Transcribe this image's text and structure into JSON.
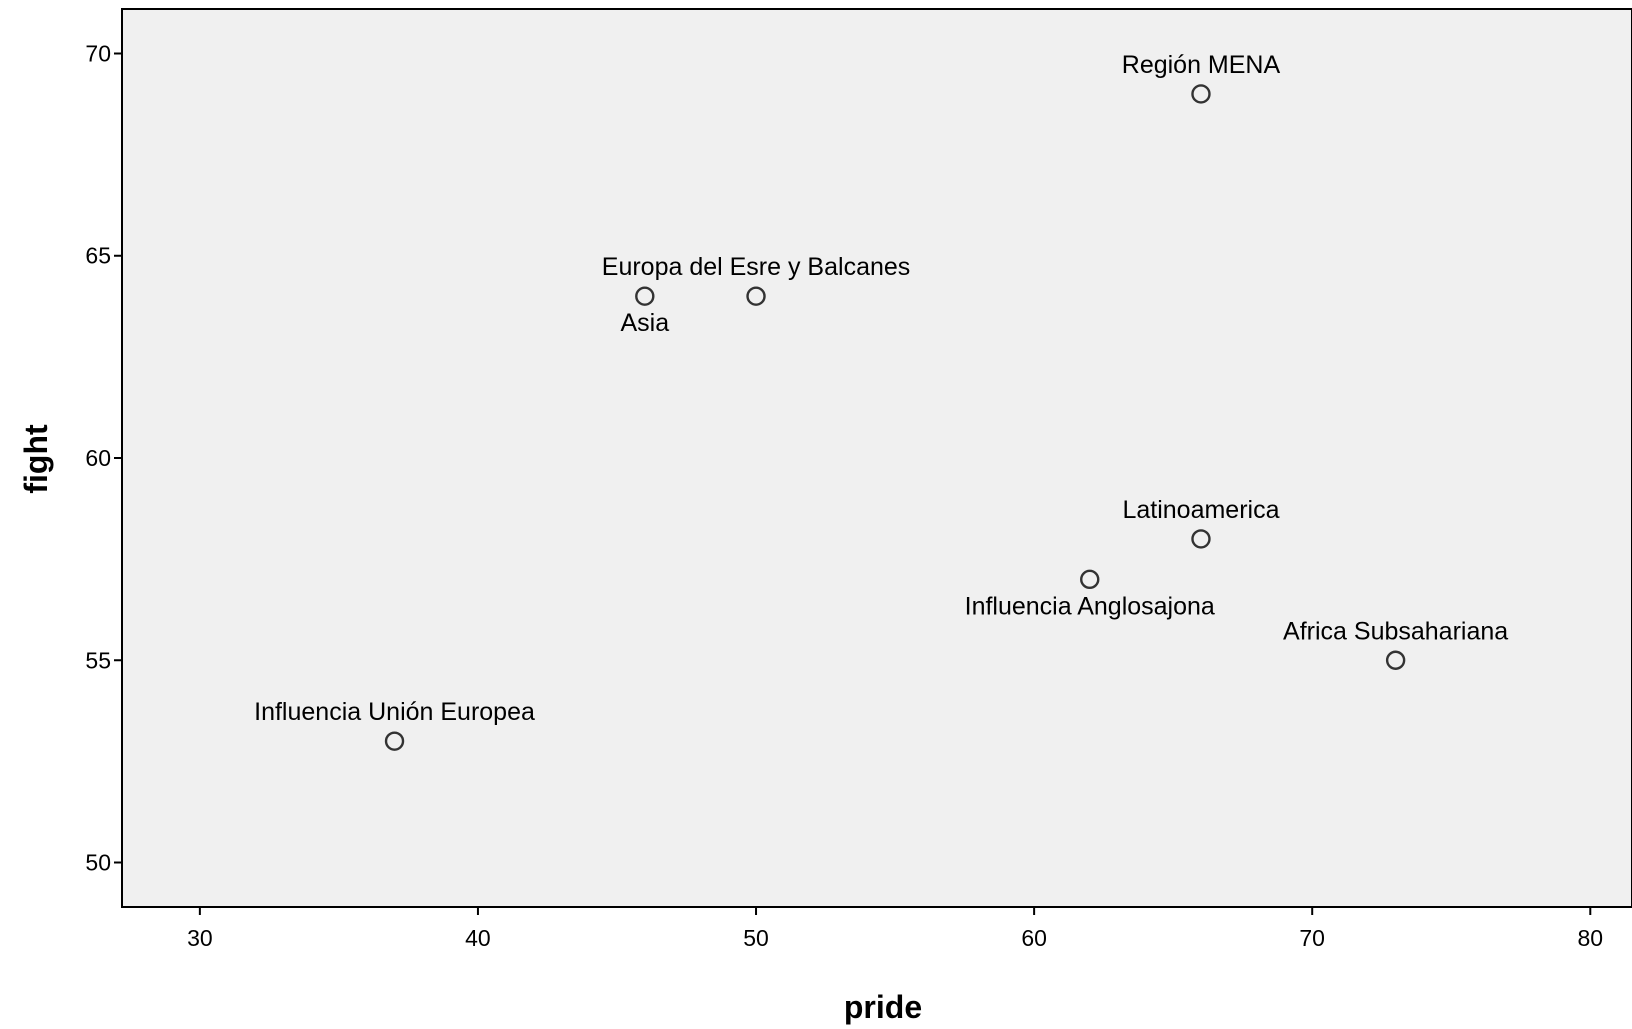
{
  "chart_data": {
    "type": "scatter",
    "xlabel": "pride",
    "ylabel": "fight",
    "xlim": [
      27.2,
      81.5
    ],
    "ylim": [
      48.9,
      71.1
    ],
    "xticks": [
      30,
      40,
      50,
      60,
      70,
      80
    ],
    "yticks": [
      50,
      55,
      60,
      65,
      70
    ],
    "points": [
      {
        "x": 66,
        "y": 69,
        "label": "Región MENA",
        "label_pos": "above"
      },
      {
        "x": 50,
        "y": 64,
        "label": "Europa del Esre y Balcanes",
        "label_pos": "above"
      },
      {
        "x": 46,
        "y": 64,
        "label": "Asia",
        "label_pos": "below"
      },
      {
        "x": 66,
        "y": 58,
        "label": "Latinoamerica",
        "label_pos": "above"
      },
      {
        "x": 62,
        "y": 57,
        "label": "Influencia Anglosajona",
        "label_pos": "below"
      },
      {
        "x": 73,
        "y": 55,
        "label": "Africa Subsahariana",
        "label_pos": "above"
      },
      {
        "x": 37,
        "y": 53,
        "label": "Influencia Unión Europea",
        "label_pos": "above"
      }
    ],
    "grid": false,
    "background": "#f0f0f0",
    "marker_color": "#333333"
  }
}
